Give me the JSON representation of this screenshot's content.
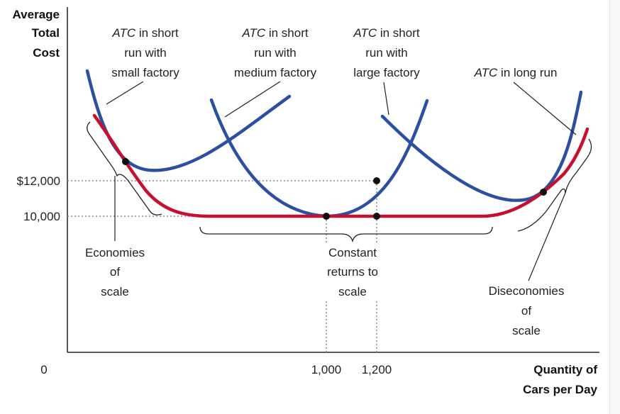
{
  "chart_data": {
    "type": "line",
    "ylabel": [
      "Average",
      "Total",
      "Cost"
    ],
    "xlabel": [
      "Quantity of",
      "Cars per Day"
    ],
    "origin_label": "0",
    "y_ticks": [
      {
        "value": 12000,
        "label": "$12,000"
      },
      {
        "value": 10000,
        "label": "10,000"
      }
    ],
    "x_ticks": [
      {
        "value": 1000,
        "label": "1,000"
      },
      {
        "value": 1200,
        "label": "1,200"
      }
    ],
    "series": [
      {
        "name": "ATC in short run with small factory",
        "color": "#2b4fa3"
      },
      {
        "name": "ATC in short run with medium factory",
        "color": "#2b4fa3"
      },
      {
        "name": "ATC in short run with large factory",
        "color": "#2b4fa3"
      },
      {
        "name": "ATC in long run",
        "color": "#c8102e"
      }
    ],
    "points": [
      {
        "x": 1000,
        "y": 10000
      },
      {
        "x": 1200,
        "y": 12000
      },
      {
        "x": 1200,
        "y": 10000
      }
    ],
    "grid": false,
    "annotations": {
      "small": [
        "ATC",
        " in short",
        "run with",
        "small factory"
      ],
      "medium": [
        "ATC",
        " in short",
        "run with",
        "medium factory"
      ],
      "large": [
        "ATC",
        " in short",
        "run with",
        "large factory"
      ],
      "longrun": [
        "ATC",
        " in long run"
      ],
      "economies": [
        "Economies",
        "of",
        "scale"
      ],
      "constant": [
        "Constant",
        "returns to",
        "scale"
      ],
      "diseconomies": [
        "Diseconomies",
        "of",
        "scale"
      ]
    }
  }
}
